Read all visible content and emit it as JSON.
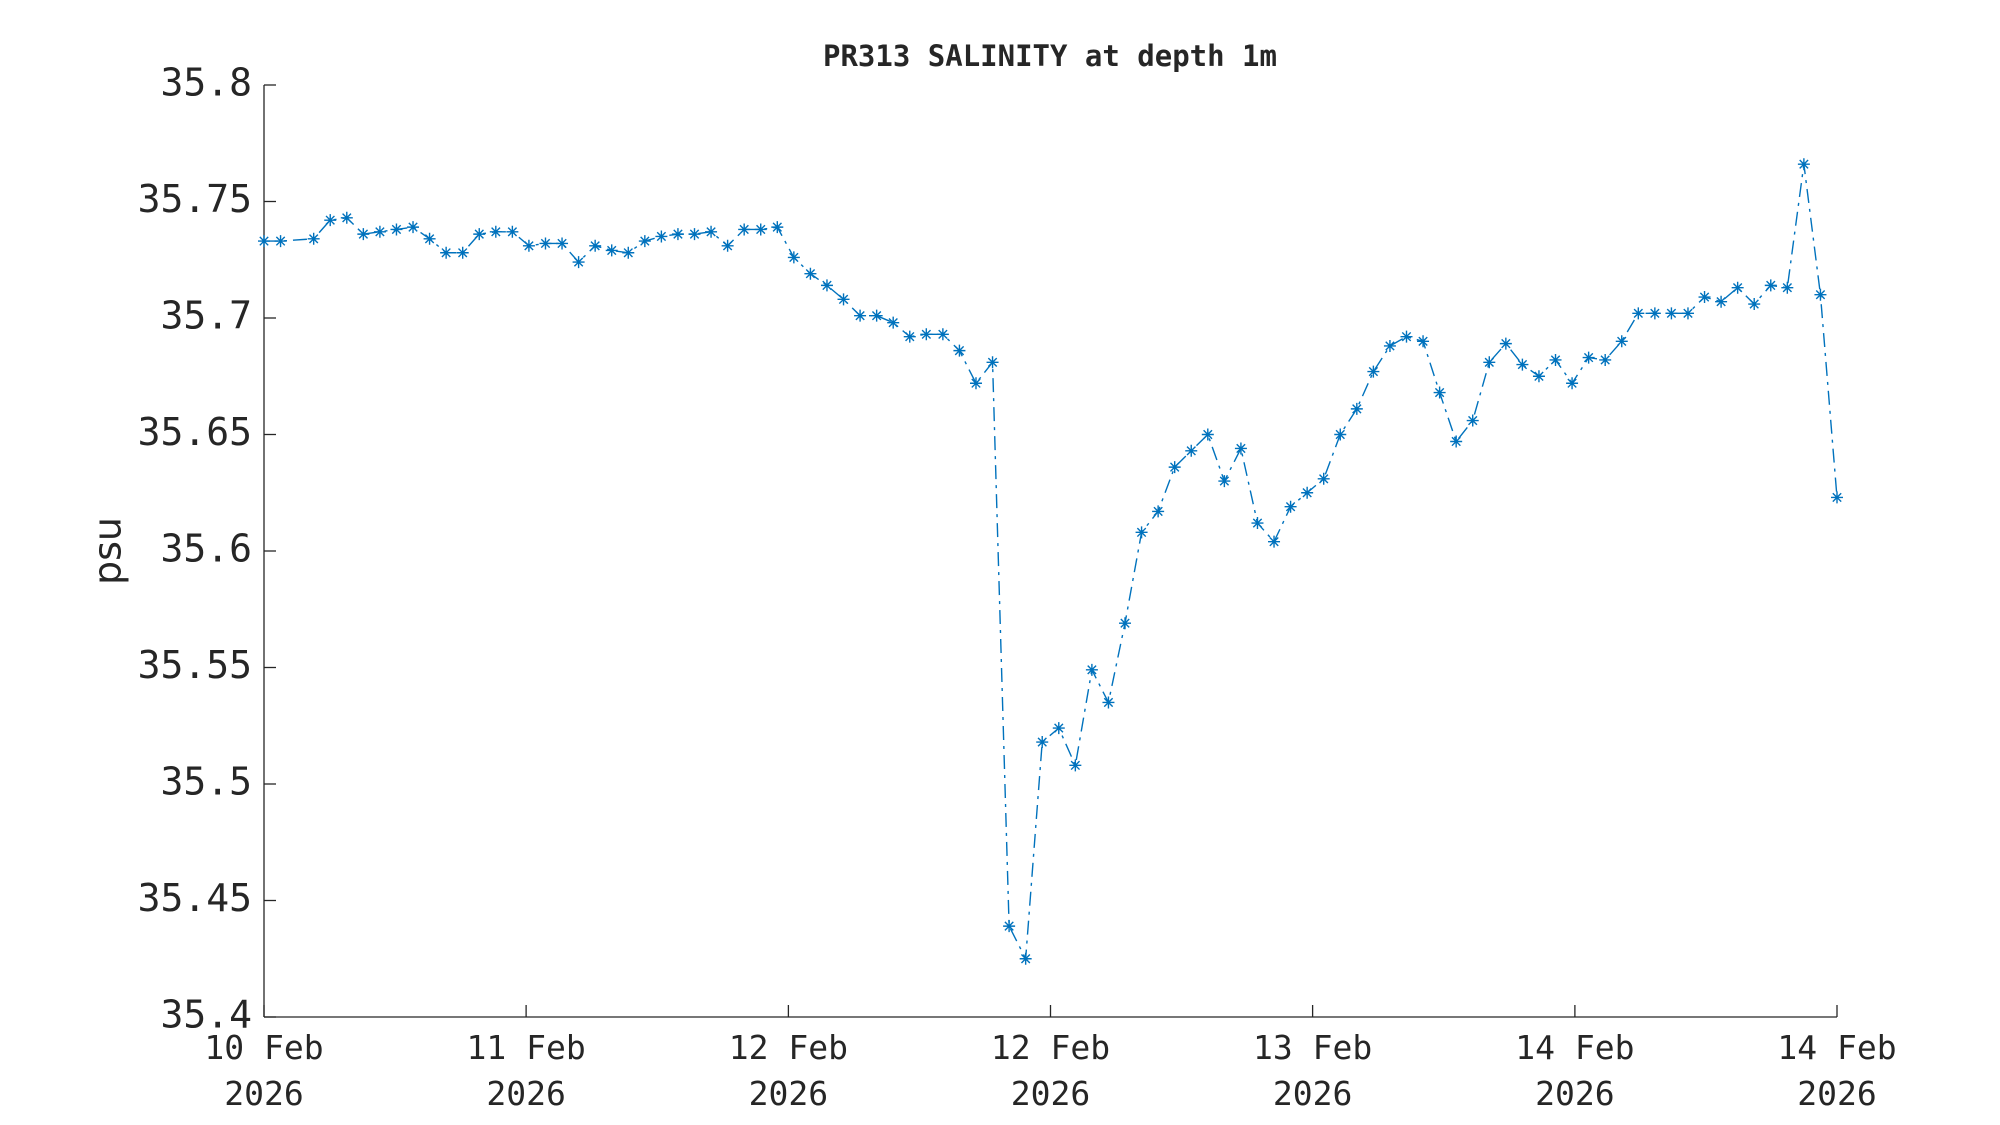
{
  "chart_data": {
    "type": "line",
    "title": "PR313 SALINITY at depth 1m",
    "ylabel": "psu",
    "x": [
      0,
      1,
      3,
      4,
      5,
      6,
      7,
      8,
      9,
      10,
      11,
      12,
      13,
      14,
      15,
      16,
      17,
      18,
      19,
      20,
      21,
      22,
      23,
      24,
      25,
      26,
      27,
      28,
      29,
      30,
      31,
      32,
      33,
      34,
      35,
      36,
      37,
      38,
      39,
      40,
      41,
      42,
      43,
      44,
      45,
      46,
      47,
      48,
      49,
      50,
      51,
      52,
      53,
      54,
      55,
      56,
      57,
      58,
      59,
      60,
      61,
      62,
      63,
      64,
      65,
      66,
      67,
      68,
      69,
      70,
      71,
      72,
      73,
      74,
      75,
      76,
      77,
      78,
      79,
      80,
      81,
      82,
      83,
      84,
      85,
      86,
      87,
      88,
      89,
      90,
      91,
      92,
      93,
      94,
      95
    ],
    "series": [
      {
        "name": "PR313 SALINITY",
        "color": "#0072bd",
        "values": [
          35.733,
          35.733,
          35.734,
          35.742,
          35.743,
          35.736,
          35.737,
          35.738,
          35.739,
          35.734,
          35.728,
          35.728,
          35.736,
          35.737,
          35.737,
          35.731,
          35.732,
          35.732,
          35.724,
          35.731,
          35.729,
          35.728,
          35.733,
          35.735,
          35.736,
          35.736,
          35.737,
          35.731,
          35.738,
          35.738,
          35.739,
          35.726,
          35.719,
          35.714,
          35.708,
          35.701,
          35.701,
          35.698,
          35.692,
          35.693,
          35.693,
          35.686,
          35.672,
          35.681,
          35.439,
          35.425,
          35.518,
          35.524,
          35.508,
          35.549,
          35.535,
          35.569,
          35.608,
          35.617,
          35.636,
          35.643,
          35.65,
          35.63,
          35.644,
          35.612,
          35.604,
          35.619,
          35.625,
          35.631,
          35.65,
          35.661,
          35.677,
          35.688,
          35.692,
          35.69,
          35.668,
          35.647,
          35.656,
          35.681,
          35.689,
          35.68,
          35.675,
          35.682,
          35.672,
          35.683,
          35.682,
          35.69,
          35.702,
          35.702,
          35.702,
          35.702,
          35.709,
          35.707,
          35.713,
          35.706,
          35.714,
          35.713,
          35.766,
          35.71,
          35.623
        ]
      }
    ],
    "xlim": [
      0,
      95
    ],
    "xticks": [
      {
        "value": 0,
        "label": "10 Feb\n2026"
      },
      {
        "value": 15.83,
        "label": "11 Feb\n2026"
      },
      {
        "value": 31.67,
        "label": "12 Feb\n2026"
      },
      {
        "value": 47.5,
        "label": "12 Feb\n2026"
      },
      {
        "value": 63.33,
        "label": "13 Feb\n2026"
      },
      {
        "value": 79.17,
        "label": "14 Feb\n2026"
      },
      {
        "value": 95,
        "label": "14 Feb\n2026"
      }
    ],
    "ylim": [
      35.4,
      35.8
    ],
    "yticks": [
      35.4,
      35.45,
      35.5,
      35.55,
      35.6,
      35.65,
      35.7,
      35.75,
      35.8
    ],
    "grid": false
  }
}
